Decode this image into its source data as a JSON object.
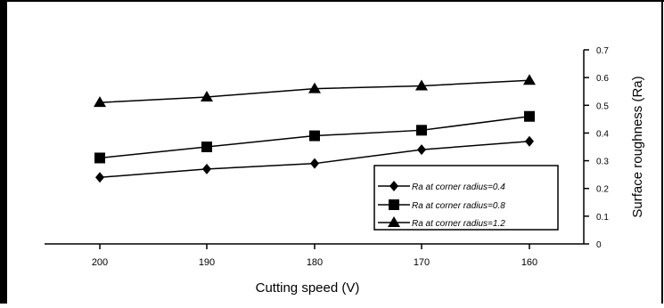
{
  "chart_data": {
    "type": "line",
    "categories": [
      "200",
      "190",
      "180",
      "170",
      "160"
    ],
    "xlabel": "Cutting speed (V)",
    "ylabel": "Surface roughness (Ra)",
    "y_axis_side": "right",
    "ylim": [
      0,
      0.7
    ],
    "yticks": [
      "0",
      "0.1",
      "0.2",
      "0.3",
      "0.4",
      "0.5",
      "0.6",
      "0.7"
    ],
    "grid": false,
    "legend_position": "bottom-right",
    "series": [
      {
        "name": "Ra at corner radius=0.4",
        "marker": "diamond",
        "values": [
          0.24,
          0.27,
          0.29,
          0.34,
          0.37
        ]
      },
      {
        "name": "Ra at corner radius=0.8",
        "marker": "square",
        "values": [
          0.31,
          0.35,
          0.39,
          0.41,
          0.46
        ]
      },
      {
        "name": "Ra at corner radius=1.2",
        "marker": "triangle",
        "values": [
          0.51,
          0.53,
          0.56,
          0.57,
          0.59
        ]
      }
    ],
    "colors": {
      "line": "#000000",
      "background": "#ffffff"
    }
  }
}
